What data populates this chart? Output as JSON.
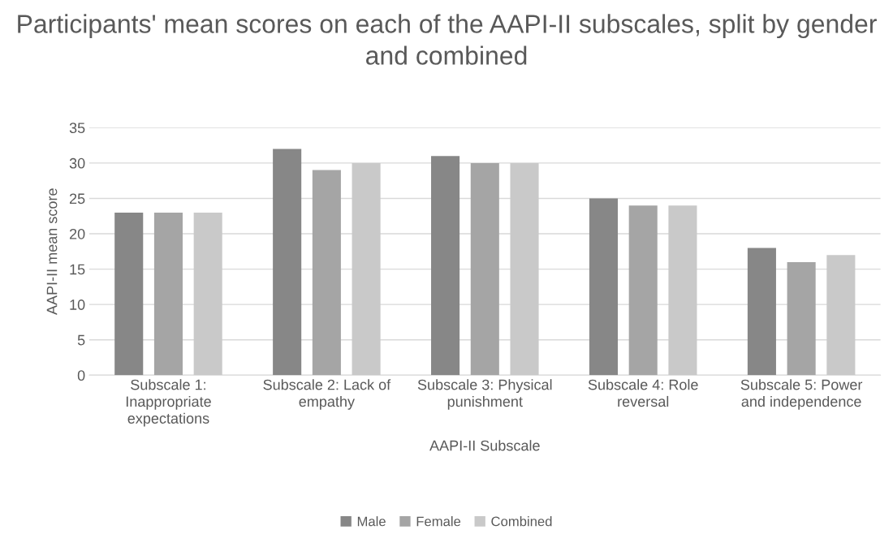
{
  "chart_data": {
    "type": "bar",
    "title": "Participants' mean scores on each of the AAPI-II subscales, split by gender and combined",
    "xlabel": "AAPI-II Subscale",
    "ylabel": "AAPI-II mean score",
    "categories": [
      "Subscale 1: Inappropriate expectations",
      "Subscale 2: Lack of empathy",
      "Subscale 3: Physical punishment",
      "Subscale 4: Role reversal",
      "Subscale 5: Power and independence"
    ],
    "series": [
      {
        "name": "Male",
        "color": "#878787",
        "values": [
          23,
          32,
          31,
          25,
          18
        ]
      },
      {
        "name": "Female",
        "color": "#a5a5a5",
        "values": [
          23,
          29,
          30,
          24,
          16
        ]
      },
      {
        "name": "Combined",
        "color": "#c9c9c9",
        "values": [
          23,
          30,
          30,
          24,
          17
        ]
      }
    ],
    "ylim": [
      0,
      35
    ],
    "yticks": [
      0,
      5,
      10,
      15,
      20,
      25,
      30,
      35
    ],
    "grid": "y",
    "legend": "bottom"
  }
}
